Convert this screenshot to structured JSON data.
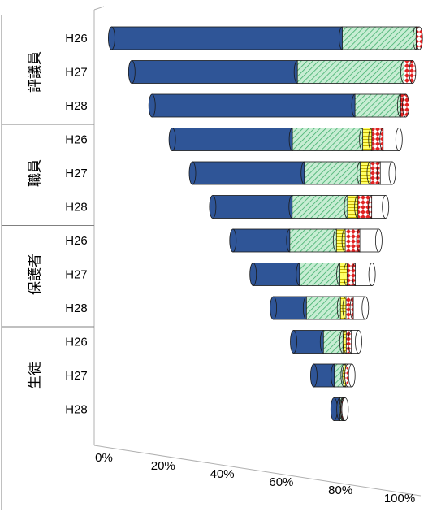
{
  "chart_data": {
    "type": "bar",
    "orientation": "horizontal",
    "stacked": true,
    "percent_stacked": true,
    "style": "3d-cylinder",
    "title": "",
    "xlabel": "",
    "ylabel": "",
    "xlim": [
      0,
      100
    ],
    "x_tick_labels": [
      "0%",
      "20%",
      "40%",
      "60%",
      "80%",
      "100%"
    ],
    "grid": false,
    "legend": "none",
    "groups": [
      {
        "label": "評議員",
        "categories": [
          "H26",
          "H27",
          "H28"
        ]
      },
      {
        "label": "職員",
        "categories": [
          "H26",
          "H27",
          "H28"
        ]
      },
      {
        "label": "保護者",
        "categories": [
          "H26",
          "H27",
          "H28"
        ]
      },
      {
        "label": "生徒",
        "categories": [
          "H26",
          "H27",
          "H28"
        ]
      }
    ],
    "series_colors": [
      "#2f5597",
      "#c7edd3",
      "#ffff66",
      "#e22323",
      "#ffffff"
    ],
    "series_patterns": [
      "solid",
      "diagonal-hatch",
      "horizontal-lines",
      "diamond",
      "solid"
    ],
    "series": [
      {
        "values": [
          75,
          59,
          80,
          53,
          56,
          46,
          39,
          39,
          36,
          46,
          54,
          54
        ]
      },
      {
        "values": [
          24,
          38,
          18,
          31,
          28,
          32,
          32,
          34,
          37,
          30,
          26,
          25
        ]
      },
      {
        "values": [
          0,
          0,
          0,
          4,
          5,
          6,
          6,
          6,
          6,
          5,
          4,
          8
        ]
      },
      {
        "values": [
          1,
          3,
          2,
          5,
          5,
          8,
          10,
          7,
          8,
          8,
          6,
          5
        ]
      },
      {
        "values": [
          0,
          0,
          0,
          7,
          6,
          8,
          13,
          14,
          13,
          11,
          10,
          8
        ]
      }
    ]
  }
}
